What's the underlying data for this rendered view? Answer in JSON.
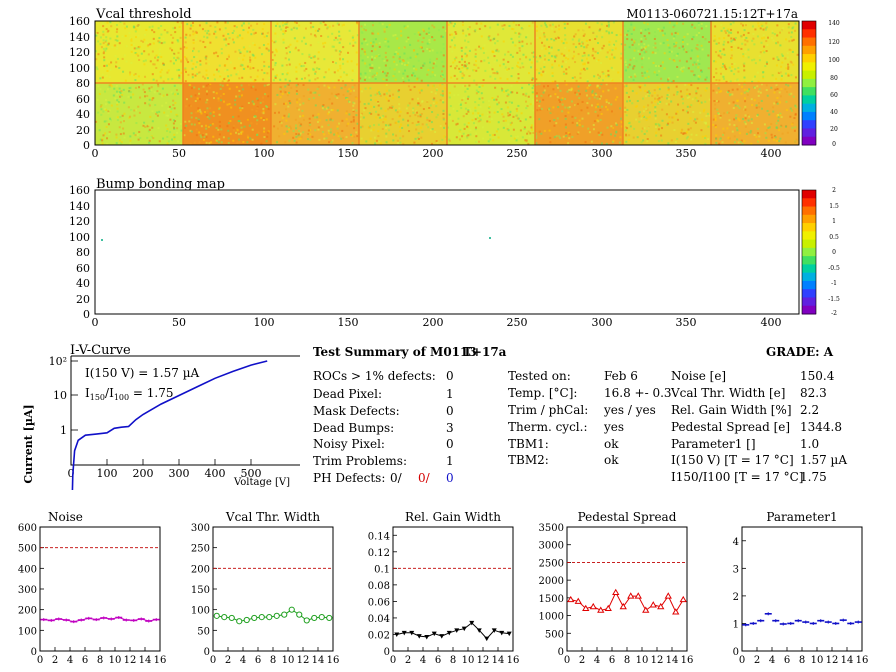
{
  "map1": {
    "title": "Vcal threshold",
    "module_id": "M0113-060721.15:12T+17a",
    "y_ticks": [
      "0",
      "20",
      "40",
      "60",
      "80",
      "100",
      "120",
      "140",
      "160"
    ],
    "x_ticks": [
      "0",
      "50",
      "100",
      "150",
      "200",
      "250",
      "300",
      "350",
      "400"
    ],
    "palette_ticks": [
      "140",
      "120",
      "100",
      "80",
      "60",
      "40",
      "20",
      "0"
    ]
  },
  "map2": {
    "title": "Bump bonding map",
    "y_ticks": [
      "0",
      "20",
      "40",
      "60",
      "80",
      "100",
      "120",
      "140",
      "160"
    ],
    "x_ticks": [
      "0",
      "50",
      "100",
      "150",
      "200",
      "250",
      "300",
      "350",
      "400"
    ],
    "palette_ticks": [
      "2",
      "1.5",
      "1",
      "0.5",
      "0",
      "-0.5",
      "-1",
      "-1.5",
      "-2"
    ]
  },
  "iv": {
    "title": "I-V-Curve",
    "ylabel": "Current [µA]",
    "xlabel": "Voltage [V]",
    "y_ticks": [
      "10²",
      "10",
      "1"
    ],
    "x_ticks": [
      "0",
      "100",
      "200",
      "300",
      "400",
      "500"
    ],
    "annot1": "I(150 V) = 1.57 µA",
    "annot2_prefix": "I",
    "annot2_sub1": "150",
    "annot2_mid": "/I",
    "annot2_sub2": "100",
    "annot2_suffix": " =  1.75"
  },
  "summary": {
    "title": "Test Summary of M0113",
    "temp_tag": "T+17a",
    "grade": "GRADE:  A",
    "defects": [
      {
        "label": "ROCs > 1% defects:",
        "value": "0"
      },
      {
        "label": "Dead Pixel:",
        "value": "1"
      },
      {
        "label": "Mask Defects:",
        "value": "0"
      },
      {
        "label": "Dead Bumps:",
        "value": "3"
      },
      {
        "label": "Noisy Pixel:",
        "value": "0"
      },
      {
        "label": "Trim Problems:",
        "value": "1"
      }
    ],
    "ph_label": "PH Defects:",
    "ph_values": [
      "0/",
      "0/",
      "0"
    ],
    "ph_colors": [
      "#000000",
      "#d40000",
      "#1010c8"
    ],
    "conditions": [
      {
        "label": "Tested on:",
        "value": "Feb 6"
      },
      {
        "label": "Temp. [°C]:",
        "value": "16.8 +- 0.3"
      },
      {
        "label": "Trim / phCal:",
        "value": "yes / yes"
      },
      {
        "label": "Therm. cycl.:",
        "value": "yes"
      },
      {
        "label": "TBM1:",
        "value": "ok"
      },
      {
        "label": "TBM2:",
        "value": "ok"
      }
    ],
    "params": [
      {
        "label": "Noise [e]",
        "value": "150.4"
      },
      {
        "label": "Vcal Thr. Width [e]",
        "value": "82.3"
      },
      {
        "label": "Rel. Gain Width [%]",
        "value": "2.2"
      },
      {
        "label": "Pedestal Spread [e]",
        "value": "1344.8"
      },
      {
        "label": "Parameter1 []",
        "value": "1.0"
      },
      {
        "label": "I(150 V) [T = 17 °C]",
        "value": "1.57 µA"
      },
      {
        "label": "I150/I100  [T = 17 °C]",
        "value": "1.75"
      }
    ]
  },
  "chart_data": [
    {
      "type": "line",
      "title": "Noise",
      "x": [
        0,
        1,
        2,
        3,
        4,
        5,
        6,
        7,
        8,
        9,
        10,
        11,
        12,
        13,
        14,
        15
      ],
      "values": [
        152,
        148,
        155,
        150,
        142,
        150,
        158,
        152,
        160,
        155,
        162,
        150,
        148,
        155,
        145,
        152
      ],
      "xlim": [
        0,
        16
      ],
      "ylim": [
        0,
        600
      ],
      "y_ticks": [
        0,
        100,
        200,
        300,
        400,
        500,
        600
      ],
      "x_ticks": [
        0,
        2,
        4,
        6,
        8,
        10,
        12,
        14,
        16
      ],
      "threshold": 500,
      "color": "#c000c0",
      "marker": "hbar"
    },
    {
      "type": "line",
      "title": "Vcal Thr. Width",
      "x": [
        0,
        1,
        2,
        3,
        4,
        5,
        6,
        7,
        8,
        9,
        10,
        11,
        12,
        13,
        14,
        15
      ],
      "values": [
        85,
        82,
        80,
        72,
        75,
        80,
        82,
        82,
        85,
        88,
        100,
        88,
        74,
        80,
        82,
        80
      ],
      "xlim": [
        0,
        16
      ],
      "ylim": [
        0,
        300
      ],
      "y_ticks": [
        0,
        50,
        100,
        150,
        200,
        250,
        300
      ],
      "x_ticks": [
        0,
        2,
        4,
        6,
        8,
        10,
        12,
        14,
        16
      ],
      "threshold": 200,
      "color": "#20a020",
      "marker": "circle"
    },
    {
      "type": "line",
      "title": "Rel. Gain Width",
      "x": [
        0,
        1,
        2,
        3,
        4,
        5,
        6,
        7,
        8,
        9,
        10,
        11,
        12,
        13,
        14,
        15
      ],
      "values": [
        0.02,
        0.022,
        0.022,
        0.018,
        0.017,
        0.021,
        0.018,
        0.022,
        0.025,
        0.027,
        0.034,
        0.025,
        0.015,
        0.025,
        0.022,
        0.021
      ],
      "xlim": [
        0,
        16
      ],
      "ylim": [
        0,
        0.15
      ],
      "y_ticks": [
        0,
        0.02,
        0.04,
        0.06,
        0.08,
        0.1,
        0.12,
        0.14
      ],
      "y_tick_labels": [
        "0",
        "0.02",
        "0.04",
        "0.06",
        "0.08",
        "0.1",
        "0.12",
        "0.14"
      ],
      "x_ticks": [
        0,
        2,
        4,
        6,
        8,
        10,
        12,
        14,
        16
      ],
      "threshold": 0.1,
      "color": "#000000",
      "marker": "triangle"
    },
    {
      "type": "line",
      "title": "Pedestal Spread",
      "x": [
        0,
        1,
        2,
        3,
        4,
        5,
        6,
        7,
        8,
        9,
        10,
        11,
        12,
        13,
        14,
        15
      ],
      "values": [
        1450,
        1400,
        1200,
        1250,
        1150,
        1200,
        1650,
        1250,
        1550,
        1550,
        1150,
        1300,
        1250,
        1550,
        1100,
        1450
      ],
      "xlim": [
        0,
        16
      ],
      "ylim": [
        0,
        3500
      ],
      "y_ticks": [
        0,
        500,
        1000,
        1500,
        2000,
        2500,
        3000,
        3500
      ],
      "x_ticks": [
        0,
        2,
        4,
        6,
        8,
        10,
        12,
        14,
        16
      ],
      "threshold": 2500,
      "color": "#e00000",
      "marker": "triangle-open"
    },
    {
      "type": "line",
      "title": "Parameter1",
      "x": [
        0,
        1,
        2,
        3,
        4,
        5,
        6,
        7,
        8,
        9,
        10,
        11,
        12,
        13,
        14,
        15
      ],
      "values": [
        0.95,
        1.0,
        1.1,
        1.35,
        1.1,
        0.98,
        1.0,
        1.1,
        1.05,
        1.0,
        1.1,
        1.05,
        1.0,
        1.12,
        1.0,
        1.05
      ],
      "xlim": [
        0,
        16
      ],
      "ylim": [
        0,
        4.5
      ],
      "y_ticks": [
        0,
        1,
        2,
        3,
        4
      ],
      "x_ticks": [
        0,
        2,
        4,
        6,
        8,
        10,
        12,
        14,
        16
      ],
      "threshold": null,
      "color": "#1010c8",
      "marker": "hbar",
      "unconnected": true
    }
  ]
}
